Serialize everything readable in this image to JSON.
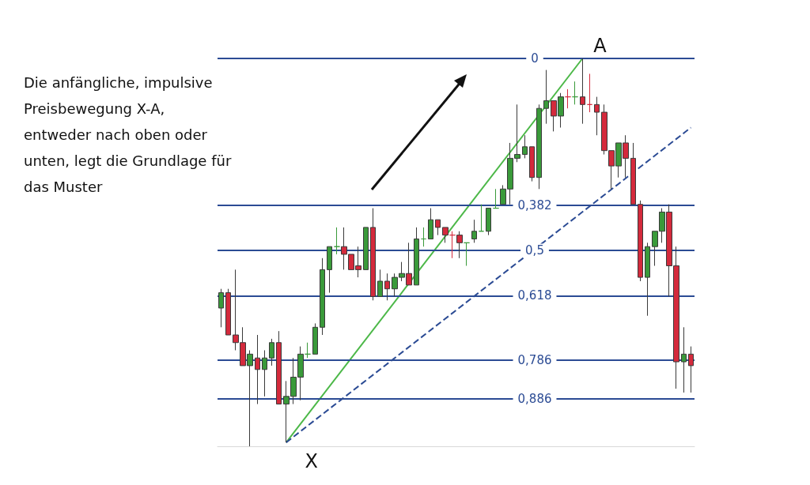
{
  "chart_data": {
    "type": "candlestick",
    "grid": "y",
    "tick_labels": "y",
    "marker": "none",
    "categories": [
      null,
      null,
      null,
      null,
      null,
      null,
      null,
      null,
      null,
      null,
      null,
      null,
      null,
      null,
      null,
      null,
      null,
      null,
      null,
      null,
      null,
      null,
      null,
      null,
      null,
      null,
      null,
      null,
      null,
      null,
      null,
      null,
      null,
      null,
      null,
      null,
      null,
      null,
      null,
      null,
      null,
      null,
      null,
      null,
      null,
      null,
      null,
      null,
      null,
      null,
      null,
      null,
      null,
      null,
      null,
      null,
      null,
      null,
      null,
      null,
      null,
      null,
      null,
      null,
      null,
      null
    ],
    "ylim": [
      1.01,
      0
    ],
    "yticks": [
      0,
      {
        "value": 0.382,
        "label": "0,382"
      },
      {
        "value": 0.5,
        "label": "0,5"
      },
      {
        "value": 0.618,
        "label": "0,618"
      },
      {
        "value": 0.786,
        "label": "0,786"
      },
      {
        "value": 0.886,
        "label": "0,886"
      }
    ],
    "ohlc": [
      [
        0.65,
        0.7,
        0.6,
        0.61
      ],
      [
        0.61,
        0.72,
        0.6,
        0.72
      ],
      [
        0.72,
        0.76,
        0.55,
        0.74
      ],
      [
        0.74,
        0.8,
        0.7,
        0.8
      ],
      [
        0.8,
        1.01,
        0.76,
        0.77
      ],
      [
        0.78,
        0.9,
        0.72,
        0.81
      ],
      [
        0.81,
        0.88,
        0.76,
        0.78
      ],
      [
        0.78,
        0.8,
        0.73,
        0.74
      ],
      [
        0.74,
        0.9,
        0.71,
        0.9
      ],
      [
        0.9,
        1.0,
        0.84,
        0.88
      ],
      [
        0.88,
        0.9,
        0.78,
        0.83
      ],
      [
        0.83,
        0.89,
        0.75,
        0.77
      ],
      [
        0.77,
        0.78,
        0.74,
        0.77
      ],
      [
        0.77,
        0.77,
        0.69,
        0.7
      ],
      [
        0.7,
        0.72,
        0.52,
        0.55
      ],
      [
        0.55,
        0.61,
        0.49,
        0.49
      ],
      [
        0.49,
        0.51,
        0.44,
        0.49
      ],
      [
        0.49,
        0.55,
        0.44,
        0.51
      ],
      [
        0.51,
        0.55,
        0.51,
        0.55
      ],
      [
        0.54,
        0.57,
        0.49,
        0.55
      ],
      [
        0.55,
        0.55,
        0.44,
        0.44
      ],
      [
        0.44,
        0.63,
        0.39,
        0.62
      ],
      [
        0.62,
        0.62,
        0.55,
        0.58
      ],
      [
        0.58,
        0.63,
        0.56,
        0.6
      ],
      [
        0.6,
        0.62,
        0.56,
        0.57
      ],
      [
        0.57,
        0.58,
        0.53,
        0.56
      ],
      [
        0.56,
        0.59,
        0.48,
        0.59
      ],
      [
        0.59,
        0.59,
        0.44,
        0.47
      ],
      [
        0.47,
        0.49,
        0.44,
        0.47
      ],
      [
        0.47,
        0.47,
        0.39,
        0.42
      ],
      [
        0.42,
        0.46,
        0.42,
        0.44
      ],
      [
        0.44,
        0.48,
        0.44,
        0.46
      ],
      [
        0.46,
        0.52,
        0.45,
        0.46
      ],
      [
        0.46,
        0.52,
        0.45,
        0.48
      ],
      [
        0.48,
        0.54,
        0.48,
        0.48
      ],
      [
        0.47,
        0.48,
        0.42,
        0.45
      ],
      [
        0.45,
        0.45,
        0.38,
        0.45
      ],
      [
        0.45,
        0.46,
        0.39,
        0.39
      ],
      [
        0.39,
        0.39,
        0.34,
        0.39
      ],
      [
        0.38,
        0.38,
        0.33,
        0.34
      ],
      [
        0.34,
        0.38,
        0.22,
        0.26
      ],
      [
        0.26,
        0.27,
        0.12,
        0.25
      ],
      [
        0.25,
        0.26,
        0.2,
        0.23
      ],
      [
        0.23,
        0.32,
        0.23,
        0.31
      ],
      [
        0.31,
        0.34,
        0.12,
        0.13
      ],
      [
        0.13,
        0.17,
        0.03,
        0.11
      ],
      [
        0.11,
        0.19,
        0.11,
        0.15
      ],
      [
        0.15,
        0.18,
        0.09,
        0.1
      ],
      [
        0.1,
        0.13,
        0.08,
        0.1
      ],
      [
        0.1,
        0.12,
        0.06,
        0.1
      ],
      [
        0.1,
        0.17,
        0,
        0.12
      ],
      [
        0.12,
        0.14,
        0.04,
        0.12
      ],
      [
        0.12,
        0.2,
        0.1,
        0.14
      ],
      [
        0.14,
        0.25,
        0.12,
        0.24
      ],
      [
        0.24,
        0.34,
        0.24,
        0.28
      ],
      [
        0.28,
        0.31,
        0.22,
        0.22
      ],
      [
        0.22,
        0.31,
        0.2,
        0.26
      ],
      [
        0.26,
        0.38,
        0.22,
        0.38
      ],
      [
        0.38,
        0.58,
        0.37,
        0.57
      ],
      [
        0.57,
        0.67,
        0.48,
        0.49
      ],
      [
        0.49,
        0.54,
        0.45,
        0.45
      ],
      [
        0.45,
        0.48,
        0.39,
        0.4
      ],
      [
        0.4,
        0.62,
        0.38,
        0.54
      ],
      [
        0.54,
        0.86,
        0.49,
        0.79
      ],
      [
        0.79,
        0.87,
        0.7,
        0.77
      ],
      [
        0.77,
        0.87,
        0.75,
        0.8
      ]
    ],
    "colors": [
      "#3a9a3a",
      "#d42a3c",
      "#d42a3c",
      "#d42a3c",
      "#3a9a3a",
      "#d42a3c",
      "#3a9a3a",
      "#3a9a3a",
      "#d42a3c",
      "#3a9a3a",
      "#3a9a3a",
      "#3a9a3a",
      "#3a9a3a",
      "#3a9a3a",
      "#3a9a3a",
      "#3a9a3a",
      "#3a9a3a",
      "#d42a3c",
      "#d42a3c",
      "#d42a3c",
      "#3a9a3a",
      "#d42a3c",
      "#3a9a3a",
      "#d42a3c",
      "#3a9a3a",
      "#3a9a3a",
      "#d42a3c",
      "#3a9a3a",
      "#3a9a3a",
      "#3a9a3a",
      "#d42a3c",
      "#d42a3c",
      "#d42a3c",
      "#d42a3c",
      "#3a9a3a",
      "#3a9a3a",
      "#3a9a3a",
      "#3a9a3a",
      "#3a9a3a",
      "#3a9a3a",
      "#3a9a3a",
      "#3a9a3a",
      "#3a9a3a",
      "#d42a3c",
      "#3a9a3a",
      "#3a9a3a",
      "#d42a3c",
      "#3a9a3a",
      "#d42a3c",
      "#3a9a3a",
      "#d42a3c",
      "#d42a3c",
      "#d42a3c",
      "#d42a3c",
      "#d42a3c",
      "#3a9a3a",
      "#d42a3c",
      "#d42a3c",
      "#d42a3c",
      "#3a9a3a",
      "#3a9a3a",
      "#3a9a3a",
      "#d42a3c",
      "#d42a3c",
      "#3a9a3a",
      "#d42a3c"
    ],
    "series": [
      {
        "type": "line",
        "color": "#4cb848",
        "line_style": "solid",
        "values": [
          null,
          null,
          null,
          null,
          null,
          null,
          null,
          null,
          null,
          1.0,
          null,
          null,
          null,
          null,
          null,
          null,
          null,
          null,
          null,
          null,
          null,
          null,
          null,
          null,
          null,
          null,
          null,
          null,
          null,
          null,
          null,
          null,
          null,
          null,
          null,
          null,
          null,
          null,
          null,
          null,
          null,
          null,
          null,
          null,
          null,
          null,
          null,
          null,
          null,
          null,
          0,
          null,
          null,
          null,
          null,
          null,
          null,
          null,
          null,
          null,
          null,
          null,
          null,
          null,
          null,
          null
        ]
      },
      {
        "type": "line",
        "color": "#2b4b94",
        "line_style": "dashed",
        "values": [
          null,
          null,
          null,
          null,
          null,
          null,
          null,
          null,
          null,
          1.0,
          null,
          null,
          null,
          null,
          null,
          null,
          null,
          null,
          null,
          null,
          null,
          null,
          null,
          null,
          null,
          null,
          null,
          null,
          null,
          null,
          null,
          null,
          null,
          null,
          null,
          null,
          null,
          null,
          null,
          null,
          null,
          null,
          null,
          null,
          null,
          null,
          null,
          null,
          null,
          null,
          null,
          null,
          null,
          null,
          null,
          null,
          null,
          null,
          null,
          null,
          null,
          null,
          null,
          null,
          null,
          0.18
        ]
      }
    ],
    "annotations": [
      "Die anfängliche, impulsive\nPreisbewegung X-A,\nentweder nach oben oder\nunten, legt die Grundlage für\ndas Muster",
      "A",
      "X"
    ]
  }
}
